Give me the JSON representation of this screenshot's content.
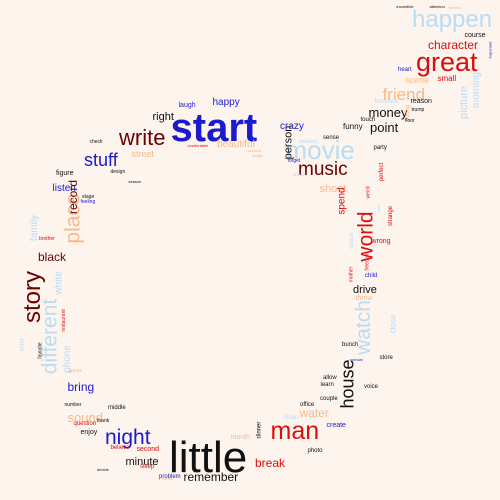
{
  "colors": {
    "background": "#fdf4ee",
    "black": "#111111",
    "blue": "#1a1ad0",
    "red": "#d90f0f",
    "maroon": "#6a0000",
    "peach": "#f8b98a",
    "light_blue": "#b9dcf5"
  },
  "words": [
    {
      "text": "start",
      "color": "blue"
    },
    {
      "text": "little",
      "color": "black"
    },
    {
      "text": "happen",
      "color": "light_blue"
    },
    {
      "text": "great",
      "color": "red"
    },
    {
      "text": "man",
      "color": "red"
    },
    {
      "text": "movie",
      "color": "light_blue"
    },
    {
      "text": "story",
      "color": "maroon"
    },
    {
      "text": "write",
      "color": "maroon"
    },
    {
      "text": "night",
      "color": "blue"
    },
    {
      "text": "music",
      "color": "maroon"
    },
    {
      "text": "world",
      "color": "red"
    },
    {
      "text": "watch",
      "color": "light_blue"
    },
    {
      "text": "place",
      "color": "peach"
    },
    {
      "text": "different",
      "color": "light_blue"
    },
    {
      "text": "house",
      "color": "black"
    },
    {
      "text": "friend",
      "color": "peach"
    },
    {
      "text": "stuff",
      "color": "blue"
    },
    {
      "text": "character",
      "color": "red"
    },
    {
      "text": "money",
      "color": "black"
    },
    {
      "text": "point",
      "color": "black"
    },
    {
      "text": "picture",
      "color": "light_blue"
    },
    {
      "text": "sound",
      "color": "peach"
    },
    {
      "text": "bring",
      "color": "blue"
    },
    {
      "text": "break",
      "color": "red"
    },
    {
      "text": "remember",
      "color": "black"
    },
    {
      "text": "minute",
      "color": "black"
    },
    {
      "text": "water",
      "color": "peach"
    },
    {
      "text": "black",
      "color": "maroon"
    },
    {
      "text": "right",
      "color": "black"
    },
    {
      "text": "happy",
      "color": "blue"
    },
    {
      "text": "person",
      "color": "black"
    },
    {
      "text": "crazy",
      "color": "blue"
    },
    {
      "text": "beautiful",
      "color": "peach"
    },
    {
      "text": "street",
      "color": "peach"
    },
    {
      "text": "listen",
      "color": "blue"
    },
    {
      "text": "record",
      "color": "maroon"
    },
    {
      "text": "family",
      "color": "light_blue"
    },
    {
      "text": "white",
      "color": "light_blue"
    },
    {
      "text": "phone",
      "color": "light_blue"
    },
    {
      "text": "drive",
      "color": "black"
    },
    {
      "text": "shoot",
      "color": "peach"
    },
    {
      "text": "spend",
      "color": "red"
    },
    {
      "text": "morning",
      "color": "light_blue"
    },
    {
      "text": "scene",
      "color": "peach"
    },
    {
      "text": "small",
      "color": "red"
    },
    {
      "text": "funny",
      "color": "black"
    },
    {
      "text": "close",
      "color": "light_blue"
    },
    {
      "text": "course",
      "color": "black"
    },
    {
      "text": "reason",
      "color": "black"
    },
    {
      "text": "laugh",
      "color": "blue"
    },
    {
      "text": "figure",
      "color": "black"
    },
    {
      "text": "check",
      "color": "black"
    },
    {
      "text": "stage",
      "color": "black"
    },
    {
      "text": "heart",
      "color": "blue"
    },
    {
      "text": "business",
      "color": "light_blue"
    },
    {
      "text": "touch",
      "color": "black"
    },
    {
      "text": "sense",
      "color": "black"
    },
    {
      "text": "young",
      "color": "peach"
    },
    {
      "text": "throw",
      "color": "peach"
    },
    {
      "text": "wrong",
      "color": "red"
    },
    {
      "text": "party",
      "color": "black"
    },
    {
      "text": "perfect",
      "color": "red"
    },
    {
      "text": "strange",
      "color": "red"
    },
    {
      "text": "child",
      "color": "blue"
    },
    {
      "text": "space",
      "color": "light_blue"
    },
    {
      "text": "office",
      "color": "black"
    },
    {
      "text": "couple",
      "color": "black"
    },
    {
      "text": "learn",
      "color": "black"
    },
    {
      "text": "allow",
      "color": "black"
    },
    {
      "text": "create",
      "color": "blue"
    },
    {
      "text": "clean",
      "color": "light_blue"
    },
    {
      "text": "photo",
      "color": "black"
    },
    {
      "text": "dinner",
      "color": "black"
    },
    {
      "text": "month",
      "color": "peach"
    },
    {
      "text": "voice",
      "color": "black"
    },
    {
      "text": "store",
      "color": "black"
    },
    {
      "text": "bunch",
      "color": "black"
    },
    {
      "text": "second",
      "color": "red"
    },
    {
      "text": "believe",
      "color": "red"
    },
    {
      "text": "enjoy",
      "color": "black"
    },
    {
      "text": "question",
      "color": "red"
    },
    {
      "text": "middle",
      "color": "black"
    },
    {
      "text": "number",
      "color": "black"
    },
    {
      "text": "thank",
      "color": "black"
    },
    {
      "text": "sleep",
      "color": "red"
    },
    {
      "text": "problem",
      "color": "blue"
    },
    {
      "text": "trump",
      "color": "black"
    },
    {
      "text": "floor",
      "color": "black"
    },
    {
      "text": "important",
      "color": "blue"
    },
    {
      "text": "forget",
      "color": "blue"
    },
    {
      "text": "favorite",
      "color": "black"
    },
    {
      "text": "restaurant",
      "color": "red"
    },
    {
      "text": "brother",
      "color": "red"
    },
    {
      "text": "actor",
      "color": "light_blue"
    },
    {
      "text": "design",
      "color": "black"
    },
    {
      "text": "season",
      "color": "black"
    },
    {
      "text": "feeling",
      "color": "blue"
    },
    {
      "text": "decide",
      "color": "black"
    },
    {
      "text": "weird",
      "color": "red"
    },
    {
      "text": "guess",
      "color": "peach"
    },
    {
      "text": "freedom",
      "color": "red"
    },
    {
      "text": "mother",
      "color": "red"
    },
    {
      "text": "incredible",
      "color": "black"
    },
    {
      "text": "attention",
      "color": "black"
    },
    {
      "text": "fashion",
      "color": "peach"
    },
    {
      "text": "image",
      "color": "peach"
    },
    {
      "text": "camera",
      "color": "peach"
    },
    {
      "text": "comfortable",
      "color": "red"
    },
    {
      "text": "special",
      "color": "blue"
    },
    {
      "text": "dream",
      "color": "peach"
    },
    {
      "text": "moment",
      "color": "light_blue"
    },
    {
      "text": "style",
      "color": "light_blue"
    },
    {
      "text": "speak",
      "color": "light_blue"
    }
  ]
}
